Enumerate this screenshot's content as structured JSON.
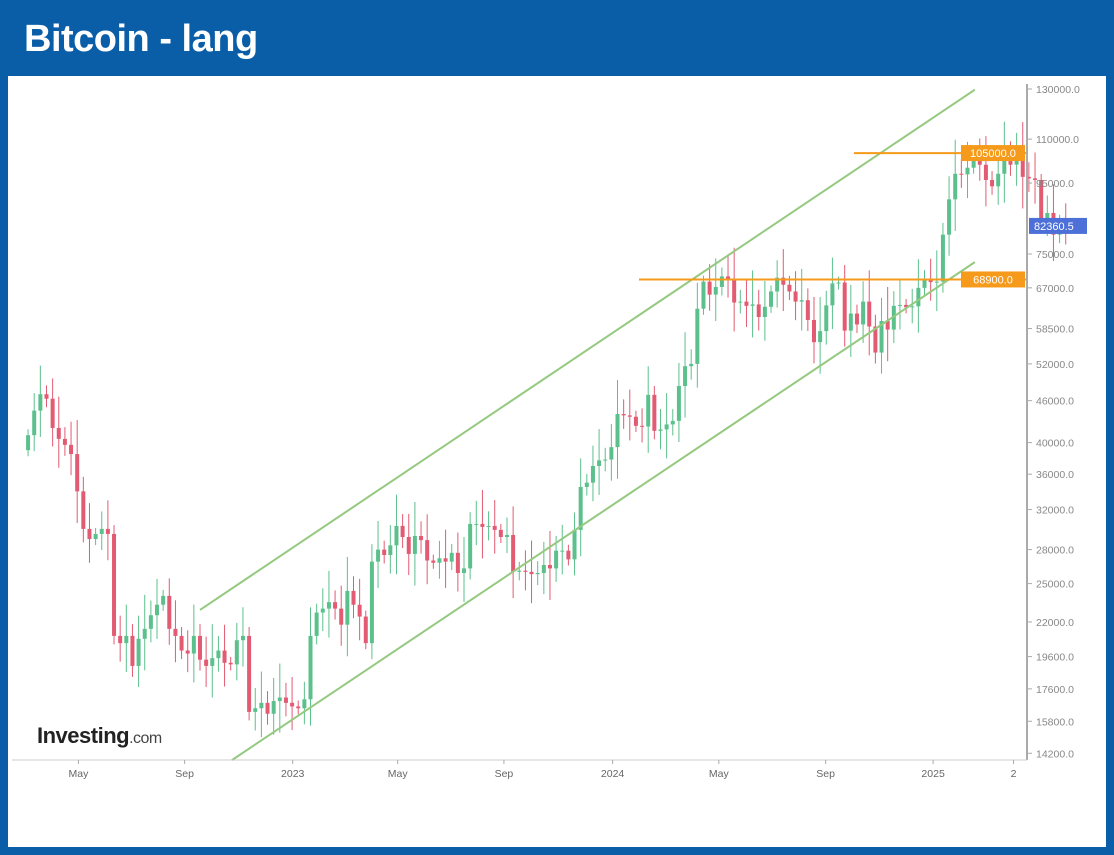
{
  "header": {
    "title": "Bitcoin - lang"
  },
  "watermark": {
    "brand": "Investing",
    "suffix": ".com"
  },
  "colors": {
    "frame": "#0a5ea8",
    "up": "#5cc08c",
    "down": "#e25b72",
    "channel": "#94c97f",
    "level": "#f59a1b",
    "price": "#4d6fd8"
  },
  "chart_data": {
    "type": "candlestick",
    "title": "Bitcoin - lang",
    "scale": "log",
    "x_unit": "weeks since 2022-03-01",
    "ylim": [
      14200,
      130000
    ],
    "y_ticks": [
      "130000.0",
      "110000.0",
      "95000.0",
      "75000.0",
      "67000.0",
      "58500.0",
      "52000.0",
      "46000.0",
      "40000.0",
      "36000.0",
      "32000.0",
      "28000.0",
      "25000.0",
      "22000.0",
      "19600.0",
      "17600.0",
      "15800.0",
      "14200.0"
    ],
    "x_ticks": [
      {
        "label": "May",
        "week": 8.7
      },
      {
        "label": "Sep",
        "week": 26
      },
      {
        "label": "2023",
        "week": 43.6
      },
      {
        "label": "May",
        "week": 60.7
      },
      {
        "label": "Sep",
        "week": 78
      },
      {
        "label": "2024",
        "week": 95.7
      },
      {
        "label": "May",
        "week": 113
      },
      {
        "label": "Sep",
        "week": 130.4
      },
      {
        "label": "2025",
        "week": 147.9
      },
      {
        "label": "2",
        "week": 161
      }
    ],
    "start_open": 39000,
    "weekly_close": [
      41000,
      44500,
      47000,
      46300,
      42000,
      40500,
      39700,
      38500,
      34000,
      30000,
      29000,
      29500,
      30000,
      29500,
      21000,
      20500,
      21000,
      19000,
      20800,
      21500,
      22500,
      23300,
      24000,
      21500,
      21000,
      20000,
      19800,
      21000,
      19400,
      19000,
      19500,
      20000,
      19200,
      19100,
      20700,
      21000,
      16300,
      16500,
      16800,
      16200,
      16900,
      17100,
      16800,
      16600,
      16500,
      17000,
      21000,
      22700,
      23000,
      23500,
      23000,
      21800,
      24400,
      23300,
      22400,
      20500,
      26900,
      28000,
      27500,
      28400,
      30300,
      29200,
      27600,
      29300,
      28900,
      27000,
      26800,
      27200,
      26900,
      27700,
      25900,
      26300,
      30500,
      30500,
      30200,
      30300,
      29900,
      29200,
      29400,
      26000,
      26100,
      26000,
      25800,
      25900,
      26600,
      26300,
      27900,
      27900,
      27100,
      29900,
      34500,
      35000,
      37000,
      37700,
      37800,
      39400,
      44000,
      43800,
      43600,
      42300,
      42200,
      46900,
      41600,
      41800,
      42500,
      43000,
      48300,
      51600,
      52000,
      62500,
      68400,
      65500,
      67200,
      69600,
      69000,
      63800,
      64000,
      63100,
      63400,
      60800,
      62900,
      66200,
      69300,
      67700,
      66200,
      64000,
      64300,
      60200,
      55900,
      58000,
      63200,
      68000,
      68200,
      58100,
      61500,
      59300,
      64000,
      58900,
      54000,
      60000,
      58300,
      63100,
      63300,
      62800,
      63000,
      67000,
      69000,
      68300,
      68400,
      80000,
      90000,
      98000,
      97800,
      100000,
      104000,
      101000,
      96000,
      94000,
      98000,
      105000,
      101000,
      104000,
      97000,
      96500,
      96000,
      84000,
      86000,
      80000,
      83000,
      82360.5
    ],
    "channel": {
      "upper": [
        {
          "week": 28.5,
          "price": 22900
        },
        {
          "week": 154.7,
          "price": 129700
        }
      ],
      "lower": [
        {
          "week": 33.7,
          "price": 13880
        },
        {
          "week": 154.7,
          "price": 73000
        }
      ]
    },
    "levels": [
      {
        "price": 105000,
        "label": "105000.0",
        "from_week": 135
      },
      {
        "price": 68900,
        "label": "68900.0",
        "from_week": 100
      }
    ],
    "last_price": {
      "price": 82360.5,
      "label": "82360.5"
    }
  }
}
